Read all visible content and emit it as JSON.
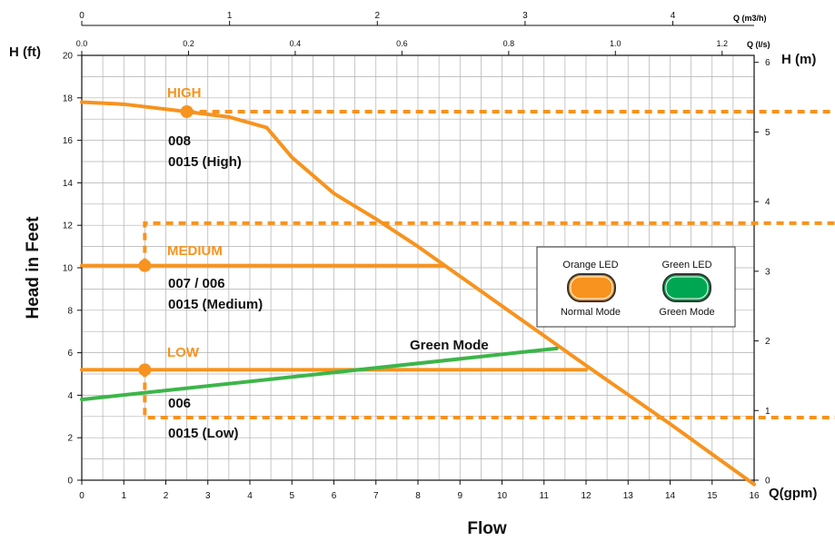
{
  "colors": {
    "orange": "#F7931E",
    "green": "#3DB54A",
    "legend_green": "#00A651",
    "grid": "#b0b0b0",
    "axis": "#111111"
  },
  "chart_data": {
    "type": "line",
    "x_bottom": {
      "label": "Q(gpm)",
      "title": "Flow",
      "range": [
        0,
        16
      ],
      "ticks": [
        0,
        1,
        2,
        3,
        4,
        5,
        6,
        7,
        8,
        9,
        10,
        11,
        12,
        13,
        14,
        15,
        16
      ]
    },
    "x_top_m3h": {
      "label": "Q (m3/h)",
      "range": [
        0,
        4.55
      ],
      "ticks": [
        0,
        1,
        2,
        3,
        4
      ]
    },
    "x_top_ls": {
      "label": "Q (l/s)",
      "range": [
        0,
        1.26
      ],
      "ticks": [
        "0.0",
        "0.2",
        "0.4",
        "0.6",
        "0.8",
        "1.0",
        "1.2"
      ]
    },
    "y_left": {
      "label": "H (ft)",
      "title": "Head in Feet",
      "range": [
        0,
        20
      ],
      "ticks": [
        0,
        2,
        4,
        6,
        8,
        10,
        12,
        14,
        16,
        18,
        20
      ]
    },
    "y_right": {
      "label": "H (m)",
      "range": [
        0,
        6.1
      ],
      "ticks": [
        0,
        1,
        2,
        3,
        4,
        5,
        6
      ]
    },
    "grid": true,
    "series": [
      {
        "name": "HIGH",
        "color": "#F7931E",
        "x": [
          0,
          1.0,
          2.5,
          3.5,
          4.4,
          5.0,
          6.0,
          7.0,
          8.0,
          10.0,
          12.0,
          14.0,
          16.0
        ],
        "y": [
          17.8,
          17.7,
          17.35,
          17.1,
          16.6,
          15.2,
          13.5,
          12.3,
          11.0,
          8.2,
          5.4,
          2.65,
          -0.2
        ]
      },
      {
        "name": "MEDIUM",
        "color": "#F7931E",
        "x": [
          0,
          8.6
        ],
        "y": [
          10.1,
          10.1
        ]
      },
      {
        "name": "LOW",
        "color": "#F7931E",
        "x": [
          0,
          12.0
        ],
        "y": [
          5.2,
          5.2
        ]
      },
      {
        "name": "Green Mode",
        "color": "#3DB54A",
        "x": [
          0,
          11.3
        ],
        "y": [
          3.8,
          6.2
        ]
      }
    ],
    "markers": [
      {
        "x": 2.5,
        "y": 17.35
      },
      {
        "x": 1.5,
        "y": 10.1
      },
      {
        "x": 1.5,
        "y": 5.2
      }
    ],
    "dashed_lines": [
      {
        "from": [
          2.5,
          17.35
        ],
        "to_y": 17.35
      },
      {
        "x": 1.5,
        "from_y": 10.1,
        "to_y": 12.1,
        "h_y": 12.1
      },
      {
        "x": 1.5,
        "from_y": 5.2,
        "to_y": 2.95,
        "h_y": 2.95
      }
    ],
    "annotations": {
      "high_label": "HIGH",
      "high_models": [
        "008",
        "0015 (High)"
      ],
      "medium_label": "MEDIUM",
      "medium_models": [
        "007 / 006",
        "0015 (Medium)"
      ],
      "low_label": "LOW",
      "low_models": [
        "006",
        "0015 (Low)"
      ],
      "green_label": "Green Mode"
    },
    "legend": {
      "position": "right",
      "items": [
        {
          "top": "Orange LED",
          "bottom": "Normal Mode",
          "color": "#F7931E"
        },
        {
          "top": "Green LED",
          "bottom": "Green Mode",
          "color": "#00A651"
        }
      ]
    }
  }
}
